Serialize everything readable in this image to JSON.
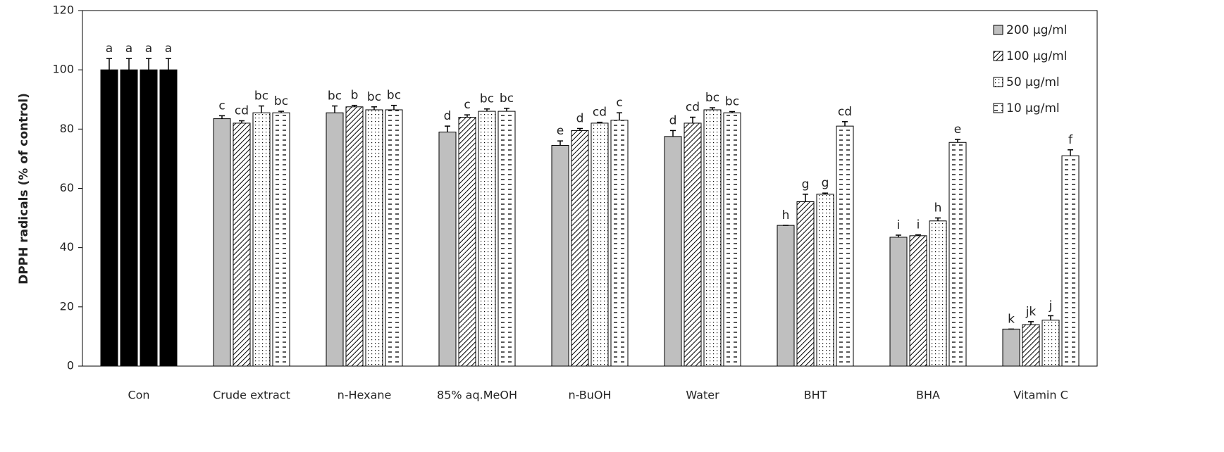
{
  "chart_data": {
    "type": "bar",
    "ylabel": "DPPH radicals (% of control)",
    "categories": [
      "Con",
      "Crude extract",
      "n-Hexane",
      "85% aq.MeOH",
      "n-BuOH",
      "Water",
      "BHT",
      "BHA",
      "Vitamin C"
    ],
    "control_color": "#000000",
    "series": [
      {
        "name": "200 μg/ml",
        "color": "#bfbfbf",
        "pattern": "solid",
        "values": [
          100,
          83.5,
          85.5,
          79,
          74.5,
          77.5,
          47.5,
          43.5,
          12.5
        ],
        "errors": [
          3.8,
          1,
          2.3,
          2,
          1.5,
          2,
          0,
          0.7,
          0
        ],
        "annotations": [
          "a",
          "c",
          "bc",
          "d",
          "e",
          "d",
          "h",
          "i",
          "k"
        ]
      },
      {
        "name": "100 μg/ml",
        "color": "#ffffff",
        "pattern": "diagonal",
        "values": [
          100,
          82,
          87.5,
          84,
          79.5,
          82,
          55.5,
          44,
          14
        ],
        "errors": [
          3.8,
          0.8,
          0.5,
          0.8,
          0.7,
          2,
          2.5,
          0.3,
          1
        ],
        "annotations": [
          "a",
          "cd",
          "b",
          "c",
          "d",
          "cd",
          "g",
          "i",
          "jk"
        ]
      },
      {
        "name": "50 μg/ml",
        "color": "#ffffff",
        "pattern": "dots",
        "values": [
          100,
          85.5,
          86.5,
          86,
          82,
          86.5,
          58,
          49,
          15.5
        ],
        "errors": [
          3.8,
          2.3,
          1,
          0.8,
          0.3,
          0.7,
          0.4,
          1,
          1.5
        ],
        "annotations": [
          "a",
          "bc",
          "bc",
          "bc",
          "cd",
          "bc",
          "g",
          "h",
          "j"
        ]
      },
      {
        "name": "10 μg/ml",
        "color": "#ffffff",
        "pattern": "dashes",
        "values": [
          100,
          85.5,
          86.5,
          86,
          83,
          85.5,
          81,
          75.5,
          71
        ],
        "errors": [
          3.8,
          0.5,
          1.5,
          1,
          2.5,
          0.4,
          1.5,
          1,
          2
        ],
        "annotations": [
          "a",
          "bc",
          "bc",
          "bc",
          "c",
          "bc",
          "cd",
          "e",
          "f"
        ]
      }
    ],
    "ylim": [
      0,
      120
    ],
    "yticks": [
      0,
      20,
      40,
      60,
      80,
      100,
      120
    ],
    "legend": "upper right"
  }
}
